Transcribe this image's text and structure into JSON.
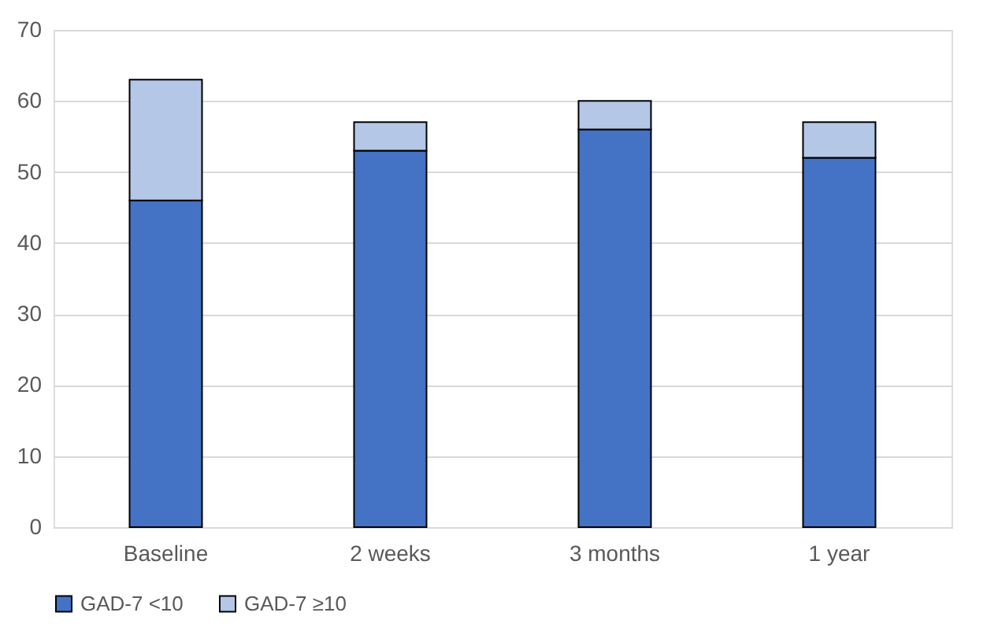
{
  "chart_data": {
    "type": "bar",
    "stacked": true,
    "categories": [
      "Baseline",
      "2 weeks",
      "3 months",
      "1 year"
    ],
    "series": [
      {
        "name": "GAD-7 <10",
        "color": "#4472c4",
        "values": [
          46,
          53,
          56,
          52
        ]
      },
      {
        "name": "GAD-7 ≥10",
        "color": "#b4c7e7",
        "values": [
          17,
          4,
          4,
          5
        ]
      }
    ],
    "ylim": [
      0,
      70
    ],
    "yticks": [
      0,
      10,
      20,
      30,
      40,
      50,
      60,
      70
    ],
    "grid": "y",
    "legend": "bottom"
  }
}
